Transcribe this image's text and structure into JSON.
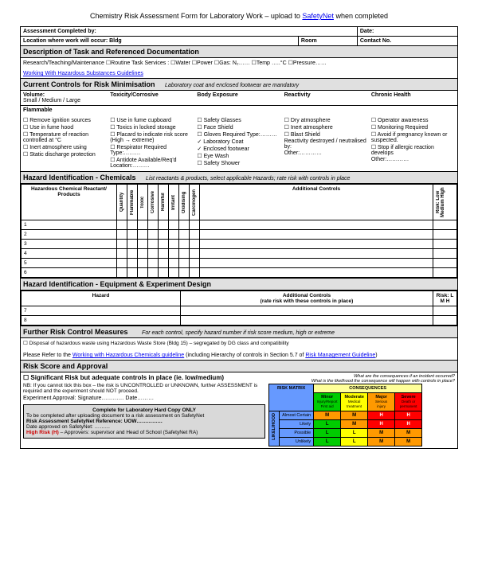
{
  "title_prefix": "Chemistry Risk Assessment Form for Laboratory Work – upload to ",
  "title_link": "SafetyNet",
  "title_suffix": " when completed",
  "hdr": {
    "completed_by": "Assessment Completed by:",
    "date": "Date:",
    "location": "Location where work will occur: Bldg",
    "room": "Room",
    "contact": "Contact No."
  },
  "s1": {
    "title": "Description of Task and Referenced Documentation",
    "line1": "Research/Teaching/Maintenance        ☐Routine Task      Services : ☐Water ☐Power  ☐Gas: N₂……  ☐Temp …..°C  ☐Pressure……",
    "link": "Working With Hazardous Substances Guidelines"
  },
  "s2": {
    "title": "Current Controls for Risk Minimisation",
    "sub": "Laboratory coat and enclosed footwear are mandatory",
    "h1": "Volume:",
    "h1b": "Small / Medium / Large",
    "h2": "Toxicity/Corrosive",
    "h3": "Body Exposure",
    "h4": "Reactivity",
    "h5": "Chronic Health",
    "flammable": "Flammable",
    "c1": [
      "☐ Remove ignition sources",
      "☐ Use in fume hood",
      "☐ Temperature of reaction controlled at     °C",
      "☐ Inert atmosphere using",
      "☐ Static discharge protection"
    ],
    "c2": [
      "☐ Use in fume cupboard",
      "☐ Toxics in locked storage",
      "☐ Placard to indicate risk score (High → extreme)",
      "☐ Respirator Required Type:………",
      "☐ Antidote Available/Req'd Location:………"
    ],
    "c3": [
      "☐ Safety Glasses",
      "☐ Face Shield",
      "☐ Gloves Required Type:………",
      "✓ Laboratory Coat",
      "✓ Enclosed footwear",
      "",
      "☐ Eye Wash",
      "☐ Safety Shower"
    ],
    "c4": [
      "☐ Dry atmosphere",
      "☐ Inert atmosphere",
      "☐ Blast Shield",
      "",
      "Reactivity destroyed / neutralised by:",
      "",
      "Other:…………"
    ],
    "c5": [
      "☐ Operator awareness",
      "☐ Monitoring Required",
      "☐ Avoid if pregnancy known or suspected.",
      "",
      "☐ Stop if allergic reaction develops",
      "",
      "Other:…………"
    ]
  },
  "s3": {
    "title": "Hazard Identification - Chemicals",
    "sub": "List reactants & products, select applicable Hazards; rate risk with controls in place",
    "col1": "Hazardous Chemical Reactant/ Products",
    "rot": [
      "Quantity",
      "Flammable",
      "Toxic",
      "Corrosive",
      "Harmful",
      "Irritant",
      "Oxidising",
      "Carcinogen"
    ],
    "col2": "Additional Controls",
    "col3": "Risk: Low Medium High",
    "rows": [
      "1",
      "2",
      "3",
      "4",
      "5",
      "6"
    ]
  },
  "s4": {
    "title": "Hazard Identification - Equipment & Experiment Design",
    "h1": "Hazard",
    "h2": "Additional Controls\n(rate risk with these controls in place)",
    "h3": "Risk: L M H",
    "rows": [
      "7",
      "8"
    ]
  },
  "s5": {
    "title": "Further Risk Control Measures",
    "sub": "For each control, specify hazard number if risk score medium, high or extreme",
    "line": "☐ Disposal of hazardous waste using Hazardous Waste Store (Bldg 15) – segregated by DG class and compatibility",
    "ref1": "Please Refer to the ",
    "reflink1": "Working with Hazardous Chemicals guideline",
    "ref2": " (including Hierarchy of controls in Section 5.7 of ",
    "reflink2": "Risk Management Guideline",
    "ref3": ")"
  },
  "s6": {
    "title": "Risk Score and Approval",
    "sig": "☐  Significant Risk but adequate controls in place (ie. low/medium)",
    "nb": "NB: If you cannot tick this box – the risk is UNCONTROLLED or UNKNOWN, further ASSESSMENT is required and the experiment should NOT proceed.",
    "exp": "Experiment Approval:       Signature…………       Date………",
    "gray_t": "Complete for Laboratory Hard Copy ONLY",
    "gray1": "To be completed after uploading document to a risk assessment on SafetyNet",
    "gray2": "Risk Assessment SafetyNet Reference:           UOW……………",
    "gray3": "Date approved on SafetyNet: ………",
    "gray4a": "High Risk (H)",
    "gray4b": " – Approvers: supervisor and Head of School (SafetyNet RA)",
    "mx_q": "What are the consequences if an incident occurred?\nWhat is the likelihood the consequence will happen with controls in place?",
    "mx_title": "RISK MATRIX",
    "mx_conseq": "CONSEQUENCES",
    "mx_cols": [
      {
        "t": "Minor",
        "s": "Injury/Report First aid",
        "c": "#00cc00"
      },
      {
        "t": "Moderate",
        "s": "Medical treatment",
        "c": "#ffff00"
      },
      {
        "t": "Major",
        "s": "Serious injury",
        "c": "#ff9900"
      },
      {
        "t": "Severe",
        "s": "Death or permanent",
        "c": "#ff0000"
      }
    ],
    "mx_like": "LIKELIHOOD",
    "mx_rows": [
      {
        "l": "Almost Certain",
        "v": [
          [
            "M",
            "#ff9900"
          ],
          [
            "M",
            "#ff9900"
          ],
          [
            "H",
            "#ff0000"
          ],
          [
            "H",
            "#ff0000"
          ]
        ]
      },
      {
        "l": "Likely",
        "v": [
          [
            "L",
            "#00cc00"
          ],
          [
            "M",
            "#ff9900"
          ],
          [
            "H",
            "#ff0000"
          ],
          [
            "H",
            "#ff0000"
          ]
        ]
      },
      {
        "l": "Possible",
        "v": [
          [
            "L",
            "#00cc00"
          ],
          [
            "L",
            "#ffff00"
          ],
          [
            "M",
            "#ff9900"
          ],
          [
            "M",
            "#ff9900"
          ]
        ]
      },
      {
        "l": "Unlikely",
        "v": [
          [
            "L",
            "#00cc00"
          ],
          [
            "L",
            "#ffff00"
          ],
          [
            "M",
            "#ff9900"
          ],
          [
            "M",
            "#ff9900"
          ]
        ]
      }
    ]
  }
}
